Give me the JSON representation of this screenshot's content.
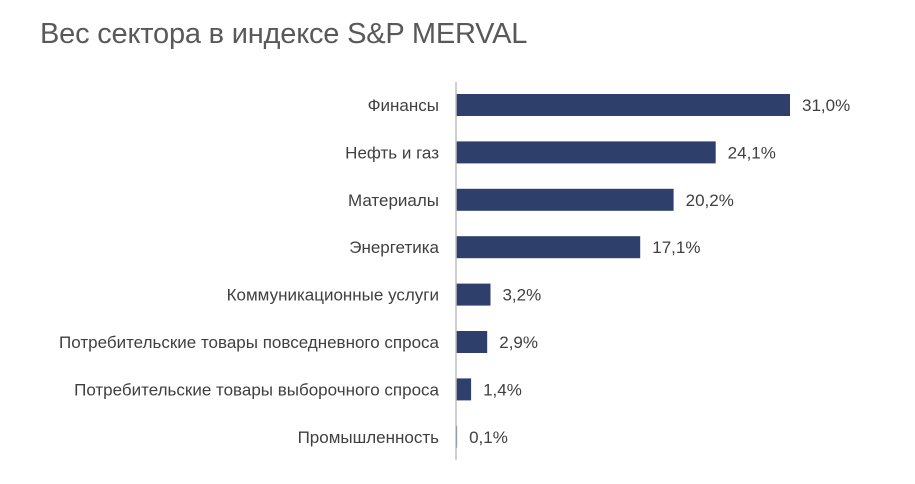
{
  "chart_data": {
    "type": "bar",
    "orientation": "horizontal",
    "title": "Вес сектора в индексе S&P MERVAL",
    "xlabel": "",
    "ylabel": "",
    "xlim": [
      0,
      31
    ],
    "grid": false,
    "legend": "none",
    "bar_color": "#2e3f6b",
    "axis_color": "#bfbfbf",
    "categories": [
      "Финансы",
      "Нефть и газ",
      "Материалы",
      "Энергетика",
      "Коммуникационные услуги",
      "Потребительские товары повседневного спроса",
      "Потребительские товары выборочного спроса",
      "Промышленность"
    ],
    "values": [
      31.0,
      24.1,
      20.2,
      17.1,
      3.2,
      2.9,
      1.4,
      0.1
    ],
    "value_labels": [
      "31,0%",
      "24,1%",
      "20,2%",
      "17,1%",
      "3,2%",
      "2,9%",
      "1,4%",
      "0,1%"
    ]
  }
}
